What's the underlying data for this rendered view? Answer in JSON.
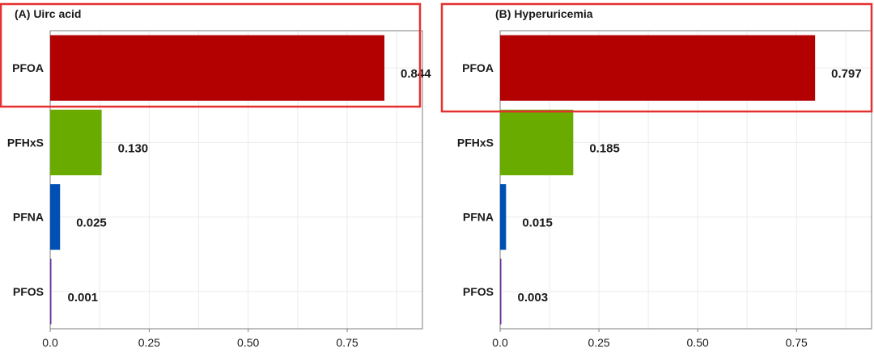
{
  "colors": {
    "PFOA": "#b30000",
    "PFHxS": "#6aab00",
    "PFNA": "#0050b4",
    "PFOS": "#6a2f9e",
    "highlight": "#e53030",
    "grid": "#ebebeb",
    "frame": "#7f7f7f"
  },
  "chart_data": [
    {
      "type": "bar",
      "orientation": "horizontal",
      "title": "(A) Uirc acid",
      "categories": [
        "PFOA",
        "PFHxS",
        "PFNA",
        "PFOS"
      ],
      "values": [
        0.844,
        0.13,
        0.025,
        0.001
      ],
      "value_labels": [
        "0.844",
        "0.130",
        "0.025",
        "0.001"
      ],
      "xlim": [
        0,
        0.94
      ],
      "xticks": [
        0,
        0.25,
        0.5,
        0.75
      ],
      "xtick_labels": [
        "0.0",
        "0.25",
        "0.50",
        "0.75"
      ],
      "xlabel": "",
      "ylabel": "",
      "grid": true,
      "highlighted_category": "PFOA"
    },
    {
      "type": "bar",
      "orientation": "horizontal",
      "title": "(B) Hyperuricemia",
      "categories": [
        "PFOA",
        "PFHxS",
        "PFNA",
        "PFOS"
      ],
      "values": [
        0.797,
        0.185,
        0.015,
        0.003
      ],
      "value_labels": [
        "0.797",
        "0.185",
        "0.015",
        "0.003"
      ],
      "xlim": [
        0,
        0.94
      ],
      "xticks": [
        0,
        0.25,
        0.5,
        0.75
      ],
      "xtick_labels": [
        "0.0",
        "0.25",
        "0.50",
        "0.75"
      ],
      "xlabel": "",
      "ylabel": "",
      "grid": true,
      "highlighted_category": "PFOA"
    }
  ]
}
